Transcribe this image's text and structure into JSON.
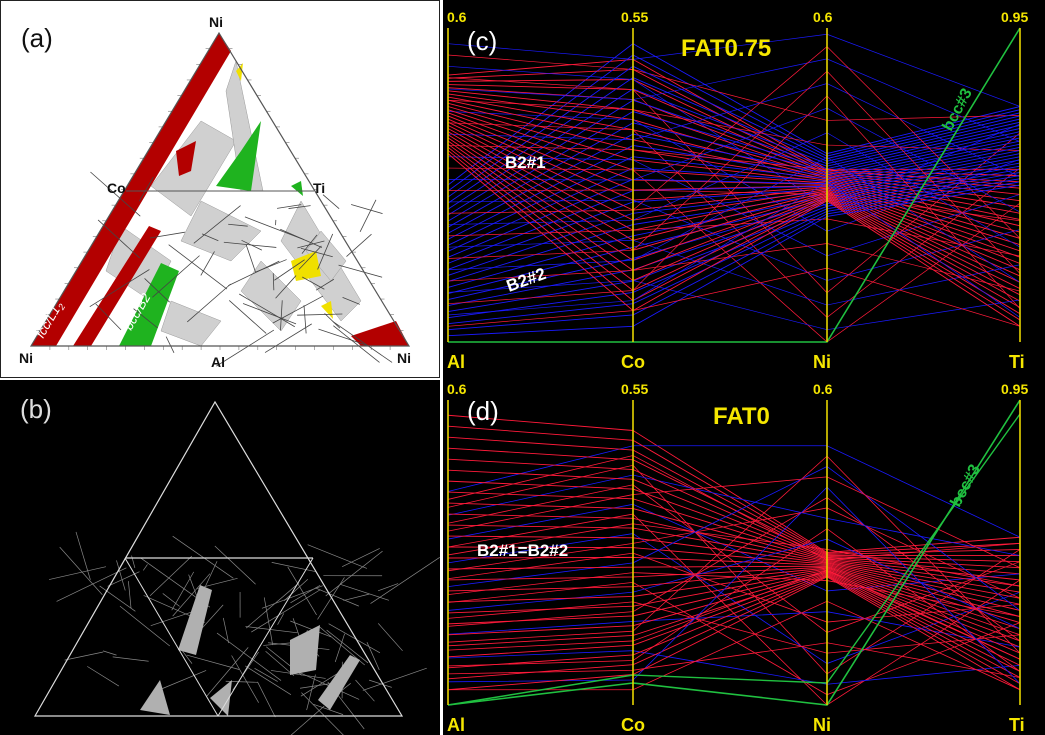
{
  "panel_a": {
    "label": "(a)",
    "vertices": {
      "top": "Ni",
      "left": "Ni",
      "right": "Ni",
      "bottom": "Al",
      "mid_left": "Co",
      "mid_right": "Ti"
    },
    "region_labels": {
      "fcc": "fcc/L1",
      "fcc_sub": "2",
      "bcc": "bcc/B2"
    },
    "colors": {
      "fcc": "#b30000",
      "bcc": "#1fb31f",
      "extra": "#f0e000",
      "tie": "#d0d0d0"
    }
  },
  "panel_b": {
    "label": "(b)"
  },
  "panel_c": {
    "label": "(c)",
    "title": "FAT0.75",
    "axes": [
      "Al",
      "Co",
      "Ni",
      "Ti"
    ],
    "axis_max": [
      "0.6",
      "0.55",
      "0.6",
      "0.95"
    ],
    "annotations": {
      "b2_1": "B2#1",
      "b2_2": "B2#2",
      "bcc3": "bcc#3"
    }
  },
  "panel_d": {
    "label": "(d)",
    "title": "FAT0",
    "axes": [
      "Al",
      "Co",
      "Ni",
      "Ti"
    ],
    "axis_max": [
      "0.6",
      "0.55",
      "0.6",
      "0.95"
    ],
    "annotations": {
      "b2": "B2#1=B2#2",
      "bcc3": "bcc#3"
    }
  },
  "colors": {
    "red": "#ff1a3a",
    "blue": "#1a1aff",
    "green": "#20c040",
    "axis": "#e6d400",
    "title": "#f5e600"
  }
}
